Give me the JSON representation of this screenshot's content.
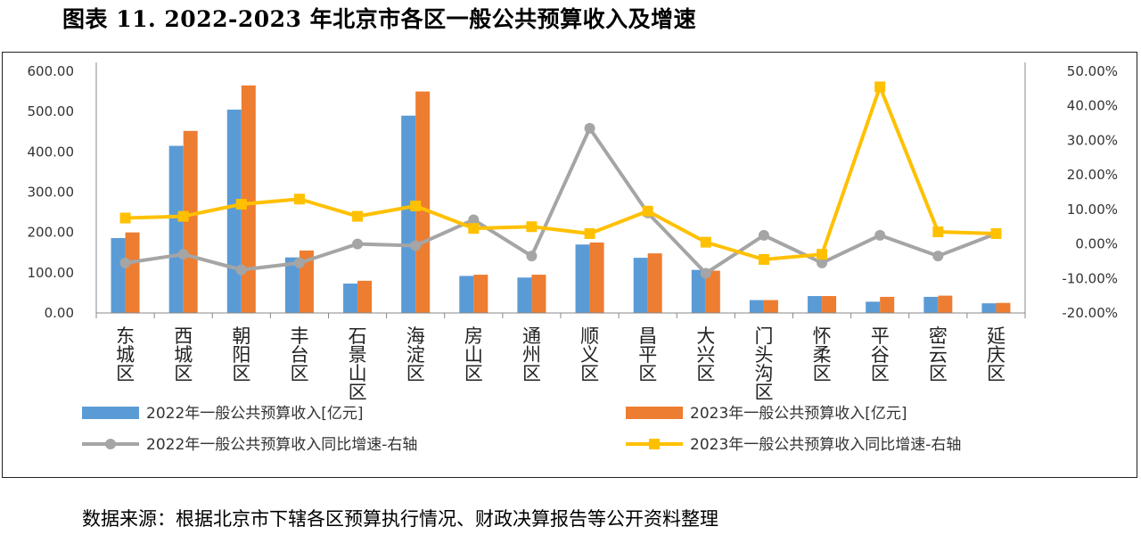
{
  "title": "图表 11. 2022-2023 年北京市各区一般公共预算收入及增速",
  "source": "数据来源：根据北京市下辖各区预算执行情况、财政决算报告等公开资料整理",
  "colors": {
    "bar2022": "#5B9BD5",
    "bar2023": "#ED7D31",
    "line2022": "#A5A5A5",
    "line2023": "#FFC000"
  },
  "chart_data": {
    "type": "bar+line",
    "categories": [
      "东城区",
      "西城区",
      "朝阳区",
      "丰台区",
      "石景山区",
      "海淀区",
      "房山区",
      "通州区",
      "顺义区",
      "昌平区",
      "大兴区",
      "门头沟区",
      "怀柔区",
      "平谷区",
      "密云区",
      "延庆区"
    ],
    "left_axis": {
      "ylim": [
        0,
        600
      ],
      "ticks": [
        "0.00",
        "100.00",
        "200.00",
        "300.00",
        "400.00",
        "500.00",
        "600.00"
      ]
    },
    "right_axis": {
      "ylim": [
        -20,
        50
      ],
      "ticks": [
        "-20.00%",
        "-10.00%",
        "0.00%",
        "10.00%",
        "20.00%",
        "30.00%",
        "40.00%",
        "50.00%"
      ]
    },
    "series": [
      {
        "name": "2022年一般公共预算收入[亿元]",
        "type": "bar",
        "axis": "left",
        "values": [
          186,
          415,
          505,
          138,
          73,
          490,
          92,
          88,
          170,
          137,
          107,
          32,
          42,
          28,
          40,
          24
        ]
      },
      {
        "name": "2023年一般公共预算收入[亿元]",
        "type": "bar",
        "axis": "left",
        "values": [
          200,
          452,
          565,
          155,
          80,
          550,
          95,
          95,
          175,
          148,
          105,
          32,
          42,
          40,
          43,
          25
        ]
      },
      {
        "name": "2022年一般公共预算收入同比增速-右轴",
        "type": "line",
        "axis": "right",
        "values": [
          -5.5,
          -3.0,
          -7.5,
          -5.5,
          0.0,
          -0.5,
          7.0,
          -3.5,
          33.5,
          9.0,
          -8.5,
          2.5,
          -5.5,
          2.5,
          -3.5,
          3.0
        ]
      },
      {
        "name": "2023年一般公共预算收入同比增速-右轴",
        "type": "line",
        "axis": "right",
        "values": [
          7.5,
          8.0,
          11.5,
          13.0,
          8.0,
          11.0,
          4.5,
          5.0,
          3.0,
          9.5,
          0.5,
          -4.5,
          -3.0,
          45.5,
          3.5,
          3.0
        ]
      }
    ]
  }
}
